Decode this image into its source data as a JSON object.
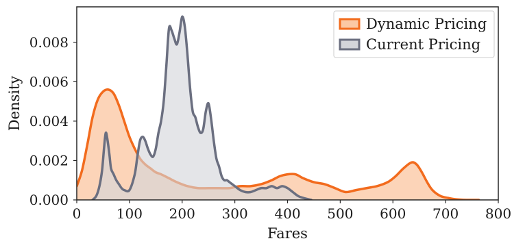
{
  "chart_data": {
    "type": "area",
    "xlabel": "Fares",
    "ylabel": "Density",
    "xlim": [
      0,
      800
    ],
    "ylim": [
      0,
      0.0098
    ],
    "xticks": [
      0,
      100,
      200,
      300,
      400,
      500,
      600,
      700,
      800
    ],
    "yticks": [
      0.0,
      0.002,
      0.004,
      0.006,
      0.008
    ],
    "ytick_labels": [
      "0.000",
      "0.002",
      "0.004",
      "0.006",
      "0.008"
    ],
    "grid": false,
    "legend": "top-right",
    "series": [
      {
        "name": "Dynamic Pricing",
        "line_color": "#f26b1d",
        "fill_color": "#fbc8a4",
        "x": [
          0,
          10,
          20,
          30,
          40,
          50,
          60,
          70,
          80,
          90,
          100,
          110,
          120,
          130,
          140,
          150,
          160,
          175,
          190,
          210,
          230,
          250,
          270,
          290,
          310,
          330,
          350,
          370,
          385,
          400,
          415,
          430,
          450,
          470,
          490,
          510,
          530,
          550,
          570,
          590,
          605,
          620,
          635,
          645,
          655,
          665,
          675,
          690,
          705,
          720,
          740,
          763
        ],
        "y": [
          0.0007,
          0.0015,
          0.0028,
          0.0042,
          0.0051,
          0.0055,
          0.0056,
          0.0054,
          0.0048,
          0.004,
          0.0032,
          0.0026,
          0.0021,
          0.0018,
          0.0016,
          0.0014,
          0.0013,
          0.0011,
          0.0009,
          0.0007,
          0.0006,
          0.0006,
          0.0006,
          0.0006,
          0.0007,
          0.0007,
          0.0008,
          0.001,
          0.0012,
          0.0013,
          0.0013,
          0.0011,
          0.0009,
          0.0008,
          0.0006,
          0.0004,
          0.0005,
          0.0006,
          0.0007,
          0.0009,
          0.0012,
          0.0016,
          0.0019,
          0.0018,
          0.0014,
          0.0009,
          0.0005,
          0.0002,
          0.0001,
          3e-05,
          0.0,
          0.0
        ]
      },
      {
        "name": "Current Pricing",
        "line_color": "#6b6f80",
        "fill_color": "#d3d5da",
        "x": [
          30,
          37,
          43,
          48,
          52,
          55,
          58,
          62,
          65,
          70,
          75,
          80,
          85,
          90,
          100,
          110,
          115,
          120,
          125,
          130,
          135,
          140,
          145,
          150,
          155,
          160,
          165,
          170,
          175,
          180,
          185,
          190,
          195,
          200,
          205,
          210,
          215,
          220,
          225,
          230,
          235,
          240,
          245,
          250,
          255,
          260,
          265,
          270,
          275,
          280,
          285,
          290,
          300,
          310,
          320,
          330,
          340,
          350,
          360,
          370,
          380,
          390,
          400,
          410,
          420,
          430,
          445
        ],
        "y": [
          0.0,
          0.0002,
          0.0007,
          0.0015,
          0.0027,
          0.0034,
          0.0031,
          0.0023,
          0.0016,
          0.0013,
          0.001,
          0.0008,
          0.0006,
          0.0005,
          0.0005,
          0.0013,
          0.0022,
          0.003,
          0.0032,
          0.003,
          0.0026,
          0.0023,
          0.0022,
          0.0026,
          0.0034,
          0.004,
          0.005,
          0.0068,
          0.0087,
          0.0086,
          0.0082,
          0.0079,
          0.0085,
          0.0093,
          0.0088,
          0.0074,
          0.0057,
          0.0045,
          0.0042,
          0.0037,
          0.0034,
          0.0036,
          0.0045,
          0.0049,
          0.0041,
          0.003,
          0.0021,
          0.0017,
          0.0012,
          0.001,
          0.001,
          0.0009,
          0.0007,
          0.0005,
          0.0004,
          0.0004,
          0.0005,
          0.0006,
          0.0006,
          0.0007,
          0.0006,
          0.0007,
          0.0006,
          0.0004,
          0.0002,
          0.0001,
          0.0
        ]
      }
    ]
  }
}
